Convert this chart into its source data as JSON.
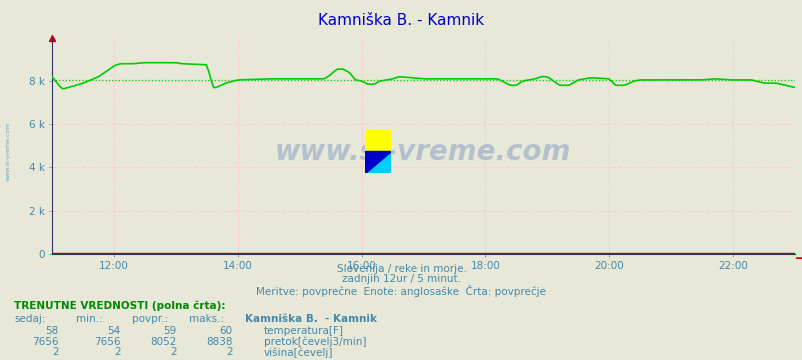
{
  "title": "Kamniška B. - Kamnik",
  "subtitle1": "Slovenija / reke in morje.",
  "subtitle2": "zadnjih 12ur / 5 minut.",
  "subtitle3": "Meritve: povprečne  Enote: anglosaške  Črta: povprečje",
  "table_header": "TRENUTNE VREDNOSTI (polna črta):",
  "col_headers": [
    "sedaj:",
    "min.:",
    "povpr.:",
    "maks.:",
    "Kamniška B.  - Kamnik"
  ],
  "rows": [
    {
      "sedaj": 58,
      "min": 54,
      "povpr": 59,
      "maks": 60,
      "label": "temperatura[F]",
      "color": "#cc0000"
    },
    {
      "sedaj": 7656,
      "min": 7656,
      "povpr": 8052,
      "maks": 8838,
      "label": "pretok[čevelj3/min]",
      "color": "#00aa00"
    },
    {
      "sedaj": 2,
      "min": 2,
      "povpr": 2,
      "maks": 2,
      "label": "višina[čevelj]",
      "color": "#0000cc"
    }
  ],
  "bg_color": "#e8e8d8",
  "plot_bg_color": "#e8e8d8",
  "grid_color": "#ffcccc",
  "title_color": "#0000cc",
  "text_color": "#4488aa",
  "table_header_color": "#008800",
  "ylim": [
    0,
    10000
  ],
  "yticks": [
    0,
    2000,
    4000,
    6000,
    8000
  ],
  "ytick_labels": [
    "0",
    "2 k",
    "4 k",
    "6 k",
    "8 k"
  ],
  "xtick_positions": [
    1,
    3,
    5,
    7,
    9,
    11
  ],
  "xtick_labels": [
    "12:00",
    "14:00",
    "16:00",
    "18:00",
    "20:00",
    "22:00"
  ],
  "watermark": "www.si-vreme.com",
  "watermark_color": "#aabbcc",
  "avg_flow": 8052,
  "line_color_flow": "#00cc00",
  "line_color_temp": "#cc0000",
  "line_color_height": "#0000cc",
  "flow_points": [
    [
      0.0,
      8200
    ],
    [
      0.15,
      7650
    ],
    [
      0.2,
      7650
    ],
    [
      0.5,
      7900
    ],
    [
      0.75,
      8200
    ],
    [
      0.9,
      8500
    ],
    [
      1.0,
      8700
    ],
    [
      1.1,
      8800
    ],
    [
      1.3,
      8800
    ],
    [
      1.5,
      8850
    ],
    [
      2.0,
      8850
    ],
    [
      2.1,
      8800
    ],
    [
      2.5,
      8750
    ],
    [
      2.6,
      7700
    ],
    [
      2.65,
      7700
    ],
    [
      2.8,
      7900
    ],
    [
      3.0,
      8050
    ],
    [
      3.5,
      8100
    ],
    [
      4.0,
      8100
    ],
    [
      4.4,
      8100
    ],
    [
      4.5,
      8300
    ],
    [
      4.6,
      8550
    ],
    [
      4.7,
      8550
    ],
    [
      4.8,
      8400
    ],
    [
      4.9,
      8050
    ],
    [
      5.0,
      8000
    ],
    [
      5.1,
      7850
    ],
    [
      5.2,
      7850
    ],
    [
      5.3,
      8000
    ],
    [
      5.5,
      8100
    ],
    [
      5.6,
      8200
    ],
    [
      6.0,
      8100
    ],
    [
      6.5,
      8100
    ],
    [
      7.0,
      8100
    ],
    [
      7.2,
      8100
    ],
    [
      7.4,
      7800
    ],
    [
      7.5,
      7800
    ],
    [
      7.6,
      8000
    ],
    [
      7.8,
      8100
    ],
    [
      7.9,
      8200
    ],
    [
      8.0,
      8200
    ],
    [
      8.2,
      7800
    ],
    [
      8.35,
      7800
    ],
    [
      8.5,
      8050
    ],
    [
      8.7,
      8150
    ],
    [
      9.0,
      8100
    ],
    [
      9.1,
      7800
    ],
    [
      9.25,
      7800
    ],
    [
      9.4,
      8000
    ],
    [
      9.5,
      8050
    ],
    [
      10.0,
      8050
    ],
    [
      10.5,
      8050
    ],
    [
      10.7,
      8100
    ],
    [
      11.0,
      8050
    ],
    [
      11.3,
      8050
    ],
    [
      11.5,
      7900
    ],
    [
      11.7,
      7900
    ],
    [
      12.0,
      7700
    ]
  ]
}
